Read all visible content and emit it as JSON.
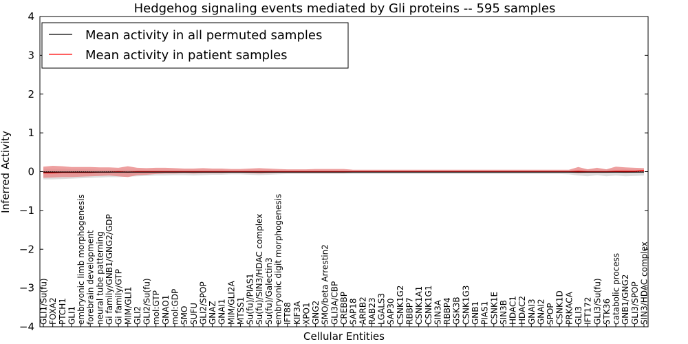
{
  "chart_data": {
    "type": "line",
    "title": "Hedgehog signaling events mediated by Gli proteins -- 595 samples",
    "xlabel": "Cellular Entities",
    "ylabel": "Inferred Activity",
    "ylim": [
      -4,
      4
    ],
    "yticks": [
      -4,
      -3,
      -2,
      -1,
      0,
      1,
      2,
      3,
      4
    ],
    "legend_position": "top-left",
    "colors": {
      "permuted": "#000000",
      "patient": "#ff0000",
      "patient_band": "#e88080",
      "permuted_band": "#c8c8c8"
    },
    "categories": [
      "GLI1/Su(fu)",
      "FOXA2",
      "PTCH1",
      "GLI1",
      "embryonic limb morphogenesis",
      "forebrain development",
      "neural tube patterning",
      "Gi family/GNB1/GNG2/GDP",
      "Gi family/GTP",
      "MIM/GLI1",
      "GLI2",
      "GLI2/Su(fu)",
      "mol:GTP",
      "GNAO1",
      "mol:GDP",
      "SMO",
      "SUFU",
      "GLI2/SPOP",
      "GNAZ",
      "GNAI1",
      "MIM/GLI2A",
      "MTSS1",
      "Su(fu)/PIAS1",
      "Su(fu)/SIN3/HDAC complex",
      "Su(fu)/Galectin3",
      "embryonic digit morphogenesis",
      "IFT88",
      "KIF3A",
      "XPO1",
      "GNG2",
      "SMO/beta Arrestin2",
      "GLI3A/CBP",
      "CREBBP",
      "SAP18",
      "ARRB2",
      "RAB23",
      "LGALS3",
      "SAP30",
      "CSNK1G2",
      "RBBP7",
      "CSNK1A1",
      "CSNK1G1",
      "SIN3A",
      "RBBP4",
      "GSK3B",
      "CSNK1G3",
      "GNB1",
      "PIAS1",
      "CSNK1E",
      "SIN3B",
      "HDAC1",
      "HDAC2",
      "GNAI3",
      "GNAI2",
      "SPOP",
      "CSNK1D",
      "PRKACA",
      "GLI3",
      "IFT172",
      "GLI3/Su(fu)",
      "STK36",
      "catabolic process",
      "GNB1/GNG2",
      "GLI3/SPOP",
      "SIN3/HDAC complex"
    ],
    "series": [
      {
        "name": "Mean activity in all permuted samples",
        "values": [
          -0.01,
          -0.01,
          -0.01,
          -0.01,
          -0.01,
          -0.01,
          -0.01,
          -0.01,
          -0.01,
          -0.01,
          -0.01,
          -0.01,
          -0.01,
          -0.01,
          -0.01,
          -0.01,
          -0.01,
          -0.01,
          -0.01,
          -0.01,
          -0.01,
          -0.01,
          -0.01,
          -0.01,
          -0.01,
          -0.01,
          -0.01,
          -0.01,
          -0.01,
          -0.01,
          -0.01,
          -0.01,
          -0.01,
          -0.01,
          -0.01,
          -0.01,
          -0.01,
          -0.01,
          -0.01,
          -0.01,
          -0.01,
          -0.01,
          -0.01,
          -0.01,
          -0.01,
          -0.01,
          -0.01,
          -0.01,
          -0.01,
          -0.01,
          -0.01,
          -0.01,
          -0.01,
          -0.01,
          -0.01,
          -0.01,
          -0.01,
          -0.01,
          -0.01,
          -0.01,
          -0.01,
          -0.01,
          -0.01,
          -0.01,
          -0.01
        ],
        "lower": [
          -0.2,
          -0.2,
          -0.19,
          -0.18,
          -0.17,
          -0.16,
          -0.15,
          -0.14,
          -0.14,
          -0.13,
          -0.12,
          -0.11,
          -0.1,
          -0.1,
          -0.09,
          -0.09,
          -0.1,
          -0.09,
          -0.08,
          -0.08,
          -0.07,
          -0.07,
          -0.08,
          -0.09,
          -0.08,
          -0.07,
          -0.06,
          -0.06,
          -0.06,
          -0.06,
          -0.06,
          -0.06,
          -0.06,
          -0.06,
          -0.06,
          -0.06,
          -0.06,
          -0.06,
          -0.06,
          -0.06,
          -0.06,
          -0.06,
          -0.06,
          -0.06,
          -0.06,
          -0.06,
          -0.06,
          -0.06,
          -0.06,
          -0.06,
          -0.06,
          -0.06,
          -0.06,
          -0.06,
          -0.06,
          -0.06,
          -0.07,
          -0.1,
          -0.12,
          -0.09,
          -0.12,
          -0.1,
          -0.12,
          -0.11,
          -0.1
        ],
        "upper": [
          0.08,
          0.07,
          0.07,
          0.06,
          0.06,
          0.06,
          0.05,
          0.05,
          0.05,
          0.05,
          0.05,
          0.05,
          0.05,
          0.05,
          0.05,
          0.05,
          0.05,
          0.05,
          0.05,
          0.05,
          0.04,
          0.04,
          0.05,
          0.05,
          0.05,
          0.04,
          0.04,
          0.04,
          0.04,
          0.04,
          0.04,
          0.04,
          0.04,
          0.04,
          0.04,
          0.04,
          0.04,
          0.04,
          0.04,
          0.04,
          0.04,
          0.04,
          0.04,
          0.04,
          0.04,
          0.04,
          0.04,
          0.04,
          0.04,
          0.04,
          0.04,
          0.04,
          0.04,
          0.04,
          0.04,
          0.04,
          0.04,
          0.05,
          0.06,
          0.05,
          0.06,
          0.05,
          0.06,
          0.05,
          0.05
        ]
      },
      {
        "name": "Mean activity in patient samples",
        "values": [
          -0.03,
          -0.03,
          -0.02,
          -0.02,
          -0.02,
          -0.02,
          -0.01,
          -0.01,
          0.0,
          -0.01,
          0.0,
          0.0,
          0.0,
          0.0,
          0.0,
          0.0,
          0.0,
          0.0,
          0.0,
          0.0,
          0.0,
          0.0,
          0.0,
          0.0,
          0.0,
          0.0,
          0.0,
          0.0,
          0.0,
          0.0,
          0.0,
          0.0,
          0.0,
          0.0,
          0.0,
          0.0,
          0.0,
          0.0,
          0.0,
          0.0,
          0.0,
          0.0,
          0.0,
          0.0,
          0.0,
          0.0,
          0.0,
          0.0,
          0.0,
          0.0,
          0.0,
          0.0,
          0.0,
          0.0,
          0.0,
          0.0,
          0.0,
          0.01,
          0.0,
          0.0,
          0.0,
          0.01,
          0.01,
          0.01,
          0.03
        ],
        "lower": [
          -0.16,
          -0.15,
          -0.14,
          -0.14,
          -0.13,
          -0.12,
          -0.11,
          -0.1,
          -0.12,
          -0.14,
          -0.09,
          -0.08,
          -0.06,
          -0.05,
          -0.05,
          -0.04,
          -0.05,
          -0.04,
          -0.04,
          -0.04,
          -0.03,
          -0.03,
          -0.04,
          -0.05,
          -0.04,
          -0.03,
          -0.03,
          -0.03,
          -0.03,
          -0.03,
          -0.03,
          -0.03,
          -0.03,
          -0.02,
          -0.02,
          -0.02,
          -0.02,
          -0.02,
          -0.02,
          -0.02,
          -0.02,
          -0.02,
          -0.02,
          -0.02,
          -0.02,
          -0.02,
          -0.02,
          -0.02,
          -0.02,
          -0.02,
          -0.02,
          -0.02,
          -0.02,
          -0.02,
          -0.02,
          -0.02,
          -0.02,
          -0.04,
          -0.03,
          -0.03,
          -0.03,
          -0.02,
          -0.03,
          -0.02,
          -0.01
        ],
        "upper": [
          0.13,
          0.15,
          0.14,
          0.12,
          0.12,
          0.12,
          0.11,
          0.11,
          0.1,
          0.14,
          0.1,
          0.09,
          0.1,
          0.1,
          0.09,
          0.08,
          0.08,
          0.09,
          0.08,
          0.08,
          0.07,
          0.07,
          0.08,
          0.09,
          0.08,
          0.07,
          0.06,
          0.06,
          0.06,
          0.07,
          0.07,
          0.07,
          0.07,
          0.05,
          0.05,
          0.05,
          0.05,
          0.05,
          0.05,
          0.05,
          0.05,
          0.05,
          0.05,
          0.05,
          0.05,
          0.05,
          0.05,
          0.05,
          0.05,
          0.05,
          0.05,
          0.05,
          0.05,
          0.05,
          0.05,
          0.05,
          0.05,
          0.12,
          0.06,
          0.1,
          0.06,
          0.13,
          0.11,
          0.1,
          0.09
        ]
      }
    ]
  }
}
